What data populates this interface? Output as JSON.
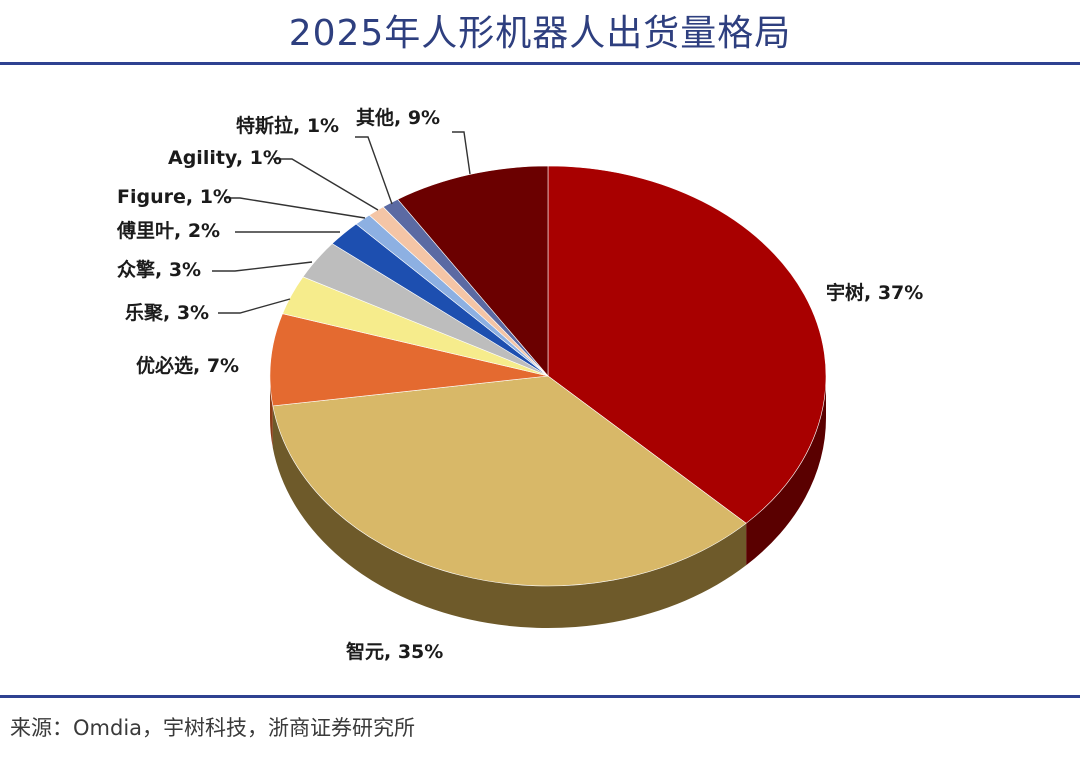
{
  "title": "2025年人形机器人出货量格局",
  "source": "来源：Omdia，宇树科技，浙商证券研究所",
  "chart_data": {
    "type": "pie",
    "title": "2025年人形机器人出货量格局",
    "style": "3d",
    "legend": "none",
    "units": "%",
    "slices": [
      {
        "name": "宇树",
        "value": 37,
        "label": "宇树, 37%",
        "color": "#a80000",
        "side": "#5a0000"
      },
      {
        "name": "智元",
        "value": 35,
        "label": "智元, 35%",
        "color": "#d8b868",
        "side": "#6e5a2a"
      },
      {
        "name": "优必选",
        "value": 7,
        "label": "优必选, 7%",
        "color": "#e46a30",
        "side": "#8a3c18"
      },
      {
        "name": "乐聚",
        "value": 3,
        "label": "乐聚, 3%",
        "color": "#f6ec8c",
        "side": "#a09a55"
      },
      {
        "name": "众擎",
        "value": 3,
        "label": "众擎, 3%",
        "color": "#bdbdbd",
        "side": "#777777"
      },
      {
        "name": "傅里叶",
        "value": 2,
        "label": "傅里叶, 2%",
        "color": "#1d4fb0",
        "side": "#12306b"
      },
      {
        "name": "Figure",
        "value": 1,
        "label": "Figure, 1%",
        "color": "#8db0e2",
        "side": "#566f94"
      },
      {
        "name": "Agility",
        "value": 1,
        "label": "Agility, 1%",
        "color": "#f4c5a6",
        "side": "#a07b64"
      },
      {
        "name": "特斯拉",
        "value": 1,
        "label": "特斯拉, 1%",
        "color": "#5b6aa3",
        "side": "#36406a"
      },
      {
        "name": "其他",
        "value": 9,
        "label": "其他, 9%",
        "color": "#6b0000",
        "side": "#3a0000"
      }
    ]
  }
}
